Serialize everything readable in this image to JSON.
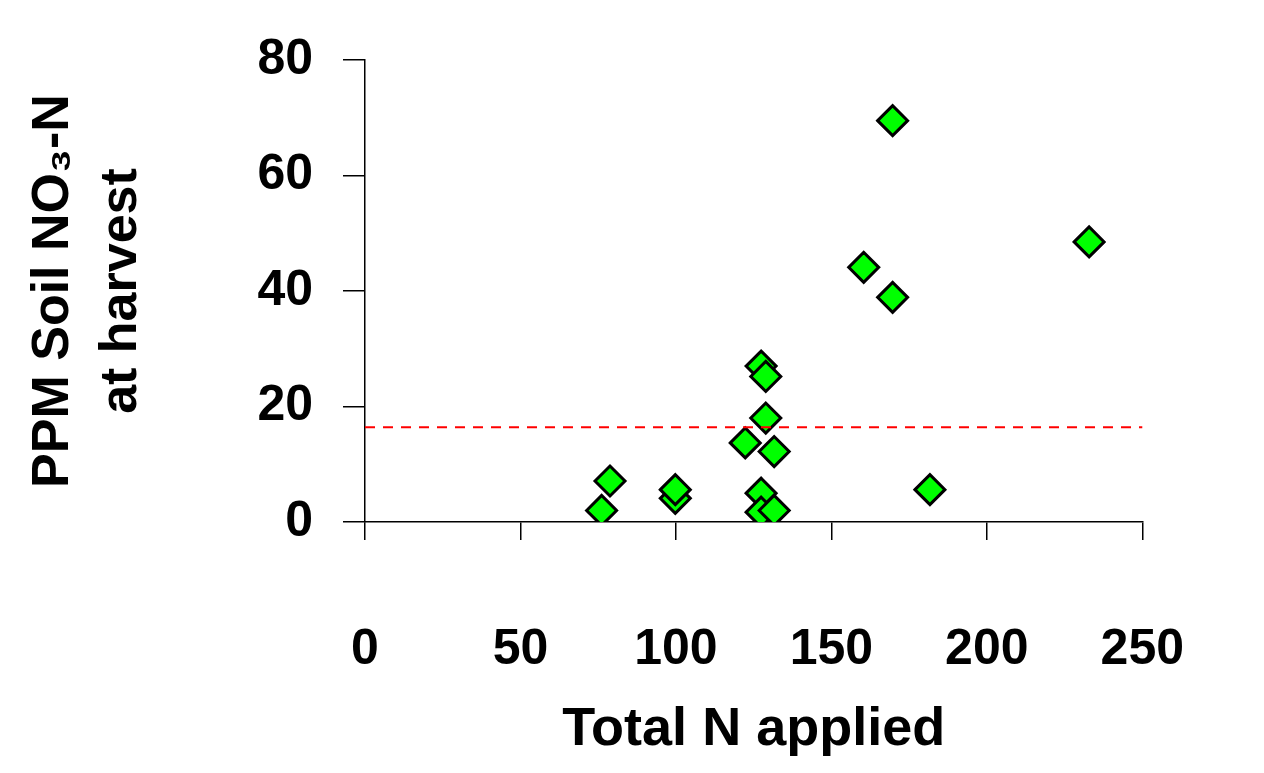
{
  "chart_data": {
    "type": "scatter",
    "xlabel": "Total N applied",
    "ylabel": "PPM Soil NO₃-N\nat harvest",
    "x": [
      76.1,
      78.8,
      99.8,
      99.8,
      122.3,
      127.4,
      128.9,
      128.9,
      131.6,
      127.4,
      127.4,
      131.6,
      169.7,
      232.9,
      160.4,
      169.7,
      181.7
    ],
    "series": [
      {
        "color": "#00ff00",
        "values": [
          2.0,
          7.1,
          4.1,
          5.6,
          13.7,
          27.0,
          25.2,
          18.0,
          12.2,
          5.0,
          1.7,
          2.0,
          69.5,
          48.5,
          44.1,
          38.9,
          5.6
        ]
      }
    ],
    "xlim": [
      0,
      250
    ],
    "xticks": [
      0,
      50,
      100,
      150,
      200,
      250
    ],
    "ylim": [
      0,
      80
    ],
    "yticks": [
      0,
      20,
      40,
      60,
      80
    ],
    "ref_lines": [
      {
        "axis": "y",
        "value": 16.4,
        "color": "#ff0000",
        "line_style": "dashed"
      }
    ],
    "marker": "diamond",
    "grid": false,
    "legend": false
  }
}
